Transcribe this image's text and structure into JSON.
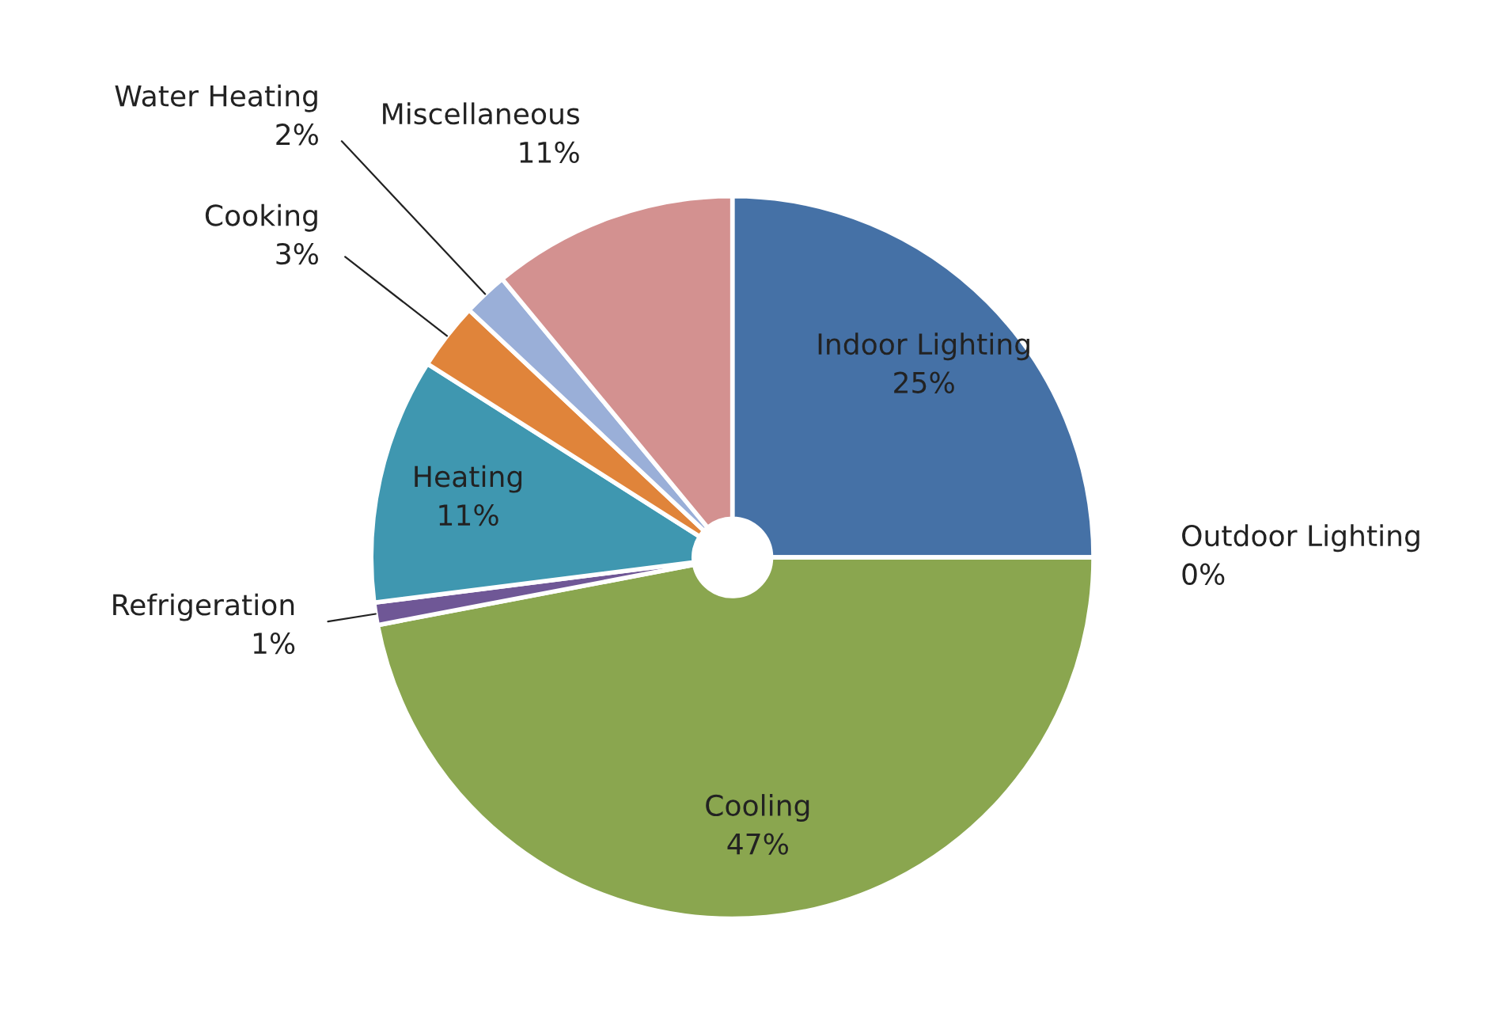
{
  "chart_data": {
    "type": "pie",
    "categories": [
      "Indoor Lighting",
      "Outdoor Lighting",
      "Cooling",
      "Refrigeration",
      "Heating",
      "Cooking",
      "Water Heating",
      "Miscellaneous"
    ],
    "values": [
      25,
      0,
      47,
      1,
      11,
      3,
      2,
      11
    ],
    "colors": [
      "#4571a6",
      "#c0504d",
      "#8aa64f",
      "#6f5796",
      "#3f97b0",
      "#e0843a",
      "#9aafd8",
      "#d39190"
    ],
    "value_labels": [
      "25%",
      "0%",
      "47%",
      "1%",
      "11%",
      "3%",
      "2%",
      "11%"
    ],
    "data_labels": true
  }
}
